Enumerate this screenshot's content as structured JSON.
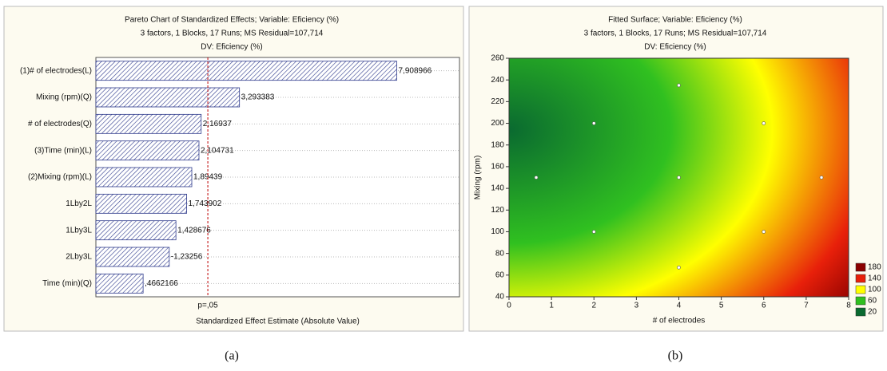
{
  "chart_data": [
    {
      "type": "bar",
      "title": "Pareto Chart of Standardized Effects; Variable: Eficiency (%)",
      "subtitle": [
        "3 factors, 1 Blocks, 17 Runs; MS Residual=107,714",
        "DV: Eficiency (%)"
      ],
      "xlabel": "Standardized Effect Estimate (Absolute Value)",
      "panel_label": "(a)",
      "categories": [
        "(1)# of electrodes(L)",
        "Mixing (rpm)(Q)",
        "# of electrodes(Q)",
        "(3)Time (min)(L)",
        "(2)Mixing (rpm)(L)",
        "1Lby2L",
        "1Lby3L",
        "2Lby3L",
        "Time (min)(Q)"
      ],
      "values": [
        7.908966,
        3.293383,
        2.16937,
        2.104731,
        1.89439,
        1.743902,
        1.428676,
        -1.23256,
        0.4662166
      ],
      "value_labels": [
        "7,908966",
        "3,293383",
        "2,16937",
        "2,104731",
        "1,89439",
        "1,743902",
        "1,428676",
        "-1,23256",
        ",4662166"
      ],
      "color": "#2e3a8c",
      "xlim": [
        -0.92,
        9.75
      ],
      "reference_line": {
        "value": 2.365,
        "label": "p=,05",
        "color": "#c00000"
      },
      "grid": true
    },
    {
      "type": "contour",
      "title": "Fitted Surface; Variable: Eficiency (%)",
      "subtitle": [
        "3 factors, 1 Blocks, 17 Runs; MS Residual=107,714",
        "DV: Eficiency (%)"
      ],
      "xlabel": "# of electrodes",
      "ylabel": "Mixing (rpm)",
      "panel_label": "(b)",
      "xlim": [
        0,
        8
      ],
      "xticks": [
        0,
        1,
        2,
        3,
        4,
        5,
        6,
        7,
        8
      ],
      "ylim": [
        40,
        260
      ],
      "yticks": [
        40,
        60,
        80,
        100,
        120,
        140,
        160,
        180,
        200,
        220,
        240,
        260
      ],
      "points": {
        "x": [
          0.64,
          2,
          2,
          4,
          4,
          4,
          6,
          6,
          7.36
        ],
        "y": [
          150,
          200,
          100,
          235,
          150,
          67,
          200,
          100,
          150
        ]
      },
      "legend": {
        "levels": [
          180,
          140,
          100,
          60,
          20
        ],
        "colors": [
          "#8b0000",
          "#e8200a",
          "#ffff00",
          "#30c020",
          "#0a6a30"
        ]
      }
    }
  ]
}
